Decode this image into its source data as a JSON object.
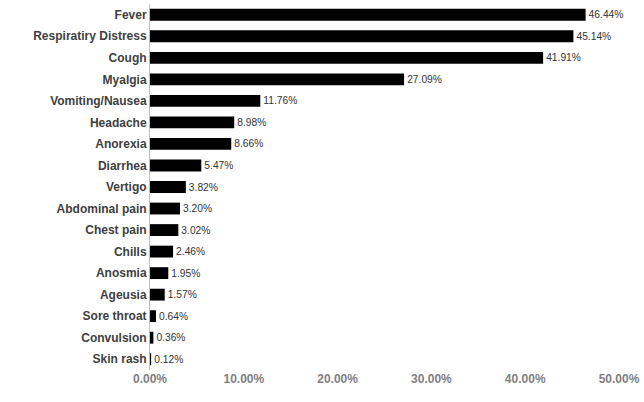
{
  "chart_data": {
    "type": "bar",
    "orientation": "horizontal",
    "categories": [
      "Fever",
      "Respiratiry Distress",
      "Cough",
      "Myalgia",
      "Vomiting/Nausea",
      "Headache",
      "Anorexia",
      "Diarrhea",
      "Vertigo",
      "Abdominal pain",
      "Chest pain",
      "Chills",
      "Anosmia",
      "Ageusia",
      "Sore throat",
      "Convulsion",
      "Skin rash"
    ],
    "values": [
      46.44,
      45.14,
      41.91,
      27.09,
      11.76,
      8.98,
      8.66,
      5.47,
      3.82,
      3.2,
      3.02,
      2.46,
      1.95,
      1.57,
      0.64,
      0.36,
      0.12
    ],
    "value_labels": [
      "46.44%",
      "45.14%",
      "41.91%",
      "27.09%",
      "11.76%",
      "8.98%",
      "8.66%",
      "5.47%",
      "3.82%",
      "3.20%",
      "3.02%",
      "2.46%",
      "1.95%",
      "1.57%",
      "0.64%",
      "0.36%",
      "0.12%"
    ],
    "color": "#000000",
    "xlim": [
      0,
      50
    ],
    "xticks": [
      {
        "value": 0,
        "label": "0.00%"
      },
      {
        "value": 10,
        "label": "10.00%"
      },
      {
        "value": 20,
        "label": "20.00%"
      },
      {
        "value": 30,
        "label": "30.00%"
      },
      {
        "value": 40,
        "label": "40.00%"
      },
      {
        "value": 50,
        "label": "50.00%"
      }
    ],
    "grid": false,
    "data_labels": true
  }
}
